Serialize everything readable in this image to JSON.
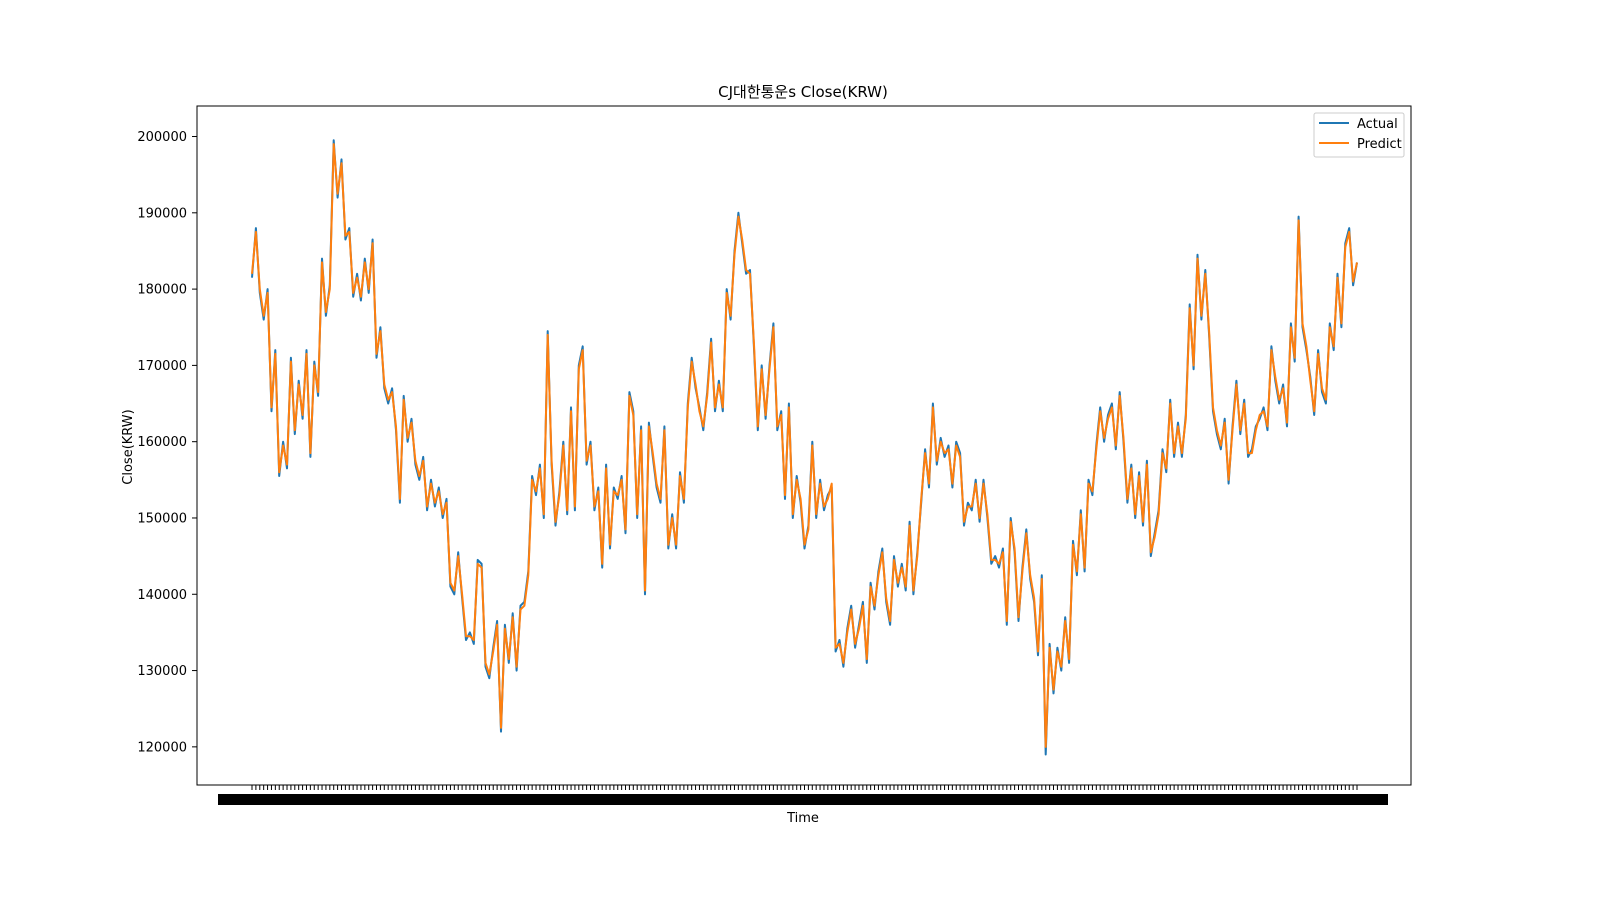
{
  "chart_data": {
    "type": "line",
    "title": "CJ대한통운s Close(KRW)",
    "xlabel": "Time",
    "ylabel": "Close(KRW)",
    "ylim": [
      115000,
      204000
    ],
    "yticks": [
      120000,
      130000,
      140000,
      150000,
      160000,
      170000,
      180000,
      190000,
      200000
    ],
    "grid": false,
    "legend_position": "top-right",
    "series": [
      {
        "name": "Actual",
        "color": "#1f77b4",
        "values": [
          181500,
          188000,
          179500,
          176000,
          180000,
          164000,
          172000,
          155500,
          160000,
          156500,
          171000,
          161000,
          168000,
          163000,
          172000,
          158000,
          170500,
          166000,
          184000,
          176500,
          180500,
          199500,
          192000,
          197000,
          186500,
          188000,
          179000,
          182000,
          178500,
          184000,
          179500,
          186500,
          171000,
          175000,
          167000,
          165000,
          167000,
          161500,
          152000,
          166000,
          160000,
          163000,
          157000,
          155000,
          158000,
          151000,
          155000,
          151500,
          154000,
          150000,
          152500,
          141000,
          140000,
          145500,
          139500,
          134000,
          135000,
          133500,
          144500,
          144000,
          130500,
          129000,
          133000,
          136500,
          122000,
          136000,
          131000,
          137500,
          130000,
          138500,
          139000,
          143000,
          155500,
          153000,
          157000,
          150000,
          174500,
          157000,
          149000,
          153500,
          160000,
          150500,
          164500,
          151000,
          170000,
          172500,
          157000,
          160000,
          151000,
          154000,
          143500,
          157000,
          146000,
          154000,
          152500,
          155500,
          148000,
          166500,
          164000,
          150000,
          162000,
          140000,
          162500,
          158000,
          154000,
          152000,
          162000,
          146000,
          150500,
          146000,
          156000,
          152000,
          165000,
          171000,
          167000,
          164500,
          161500,
          166500,
          173500,
          164000,
          168000,
          164000,
          180000,
          176000,
          185000,
          190000,
          186000,
          182000,
          182500,
          172500,
          161500,
          170000,
          163000,
          170000,
          175500,
          161500,
          164000,
          152500,
          165000,
          150000,
          155500,
          152000,
          146000,
          149000,
          160000,
          150000,
          155000,
          151000,
          153000,
          154000,
          132500,
          134000,
          130500,
          135500,
          138500,
          133000,
          136000,
          139000,
          131000,
          141500,
          138000,
          143000,
          146000,
          139000,
          136000,
          145000,
          141000,
          144000,
          140500,
          149500,
          140000,
          145500,
          152000,
          159000,
          154000,
          165000,
          157000,
          160500,
          158000,
          159500,
          154000,
          160000,
          158500,
          149000,
          152000,
          151000,
          155000,
          149500,
          155000,
          150000,
          144000,
          145000,
          143500,
          146000,
          136000,
          150000,
          145500,
          136500,
          143500,
          148500,
          142000,
          139000,
          132000,
          142500,
          119000,
          133500,
          127000,
          133000,
          130000,
          137000,
          131000,
          147000,
          142500,
          151000,
          143000,
          155000,
          153000,
          159500,
          164500,
          160000,
          163500,
          165000,
          159000,
          166500,
          160000,
          152000,
          157000,
          150000,
          156000,
          149000,
          157500,
          145000,
          148000,
          151000,
          159000,
          156000,
          165500,
          158000,
          162500,
          158000,
          163500,
          178000,
          169500,
          184500,
          176000,
          182500,
          174000,
          164000,
          161000,
          159000,
          163000,
          154500,
          162000,
          168000,
          161000,
          165500,
          158000,
          159000,
          162000,
          163000,
          164500,
          161500,
          172500,
          168000,
          165000,
          167500,
          162000,
          175500,
          170500,
          189500,
          175000,
          172000,
          168500,
          163500,
          172000,
          166500,
          165000,
          175500,
          172000,
          182000,
          175000,
          186000,
          188000,
          180500,
          183500
        ],
        "note": ""
      },
      {
        "name": "Predict",
        "color": "#ff7f0e",
        "values": [
          182000,
          187500,
          180000,
          176500,
          179500,
          164500,
          171500,
          156000,
          159500,
          157000,
          170500,
          161500,
          167500,
          163500,
          171500,
          158500,
          170000,
          166500,
          183500,
          177000,
          180000,
          199000,
          192500,
          196500,
          187000,
          187500,
          179500,
          181500,
          179000,
          183500,
          180000,
          186000,
          171500,
          174500,
          167500,
          165500,
          166500,
          162000,
          152500,
          165500,
          160500,
          162500,
          157500,
          155500,
          157500,
          151500,
          154500,
          152000,
          153500,
          150500,
          152000,
          141500,
          140500,
          145000,
          140000,
          134500,
          134500,
          134000,
          144000,
          143500,
          131000,
          129500,
          132500,
          136000,
          122500,
          135500,
          131500,
          137000,
          130500,
          138000,
          138500,
          142500,
          155000,
          153500,
          156500,
          150500,
          174000,
          157500,
          149500,
          153000,
          159500,
          151000,
          164000,
          151500,
          169500,
          172000,
          157500,
          159500,
          151500,
          153500,
          144000,
          156500,
          146500,
          153500,
          153000,
          155000,
          148500,
          166000,
          163500,
          150500,
          161500,
          140500,
          162000,
          158500,
          154500,
          152500,
          161500,
          146500,
          150000,
          146500,
          155500,
          152500,
          164500,
          170500,
          167500,
          164000,
          162000,
          166000,
          173000,
          164500,
          167500,
          164500,
          179500,
          176500,
          184500,
          189500,
          186500,
          182500,
          182000,
          173000,
          162000,
          169500,
          163500,
          169500,
          175000,
          162000,
          163500,
          153000,
          164500,
          150500,
          155000,
          152500,
          146500,
          148500,
          159500,
          150500,
          154500,
          151500,
          152500,
          154500,
          133000,
          133500,
          131000,
          135000,
          138000,
          133500,
          135500,
          138500,
          131500,
          141000,
          138500,
          142500,
          145500,
          139500,
          136500,
          144500,
          141500,
          143500,
          141000,
          149000,
          140500,
          145000,
          152500,
          158500,
          154500,
          164500,
          157500,
          160000,
          158500,
          159000,
          154500,
          159500,
          158000,
          149500,
          151500,
          151500,
          154500,
          150000,
          154500,
          150500,
          144500,
          144500,
          144000,
          145500,
          136500,
          149500,
          146000,
          137000,
          143000,
          148000,
          142500,
          139500,
          132500,
          142000,
          120000,
          133000,
          127500,
          132500,
          130500,
          136500,
          131500,
          146500,
          143000,
          150500,
          143500,
          154500,
          153500,
          159000,
          164000,
          160500,
          163000,
          164500,
          159500,
          166000,
          160500,
          152500,
          156500,
          150500,
          155500,
          149500,
          157000,
          145500,
          147500,
          150500,
          158500,
          156500,
          165000,
          158500,
          162000,
          158500,
          163000,
          177500,
          170000,
          184000,
          176500,
          182000,
          174500,
          164500,
          161500,
          159500,
          162500,
          155000,
          161500,
          167500,
          161500,
          165000,
          158500,
          158500,
          161500,
          163500,
          164000,
          162000,
          172000,
          168500,
          165500,
          167000,
          162500,
          175000,
          171000,
          189000,
          175500,
          172500,
          168000,
          164000,
          171500,
          167000,
          165500,
          175000,
          172500,
          181500,
          175500,
          185500,
          187500,
          181000,
          183500
        ],
        "note": ""
      }
    ]
  }
}
